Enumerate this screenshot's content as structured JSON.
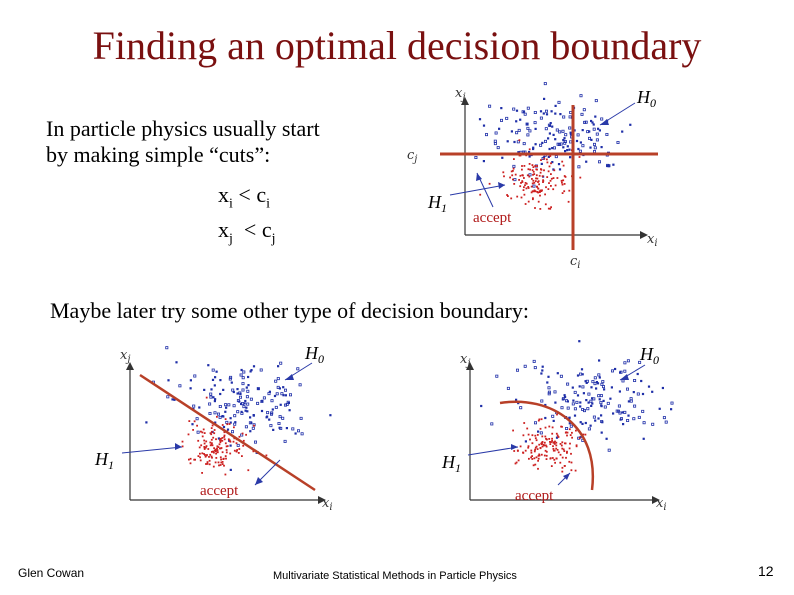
{
  "title": "Finding an optimal decision boundary",
  "intro": {
    "line1": "In particle physics usually start",
    "line2": "by making simple “cuts”:"
  },
  "cuts": [
    {
      "var": "x",
      "sub": "i",
      "op": " < ",
      "cut": "c",
      "csub": "i"
    },
    {
      "var": "x",
      "sub": "j",
      "op": "  < ",
      "cut": "c",
      "csub": "j"
    }
  ],
  "later_text": "Maybe later try some other type of decision boundary:",
  "labels": {
    "xi": "x",
    "xi_sub": "i",
    "xj": "x",
    "xj_sub": "j",
    "ci": "c",
    "ci_sub": "i",
    "cj": "c",
    "cj_sub": "j",
    "h0": "H",
    "h0_sub": "0",
    "h1": "H",
    "h1_sub": "1",
    "accept": "accept"
  },
  "colors": {
    "signal": "#cc2020",
    "background": "#1f2fa8",
    "boundary": "#b84028",
    "title": "#7a1010"
  },
  "footer": {
    "author": "Glen Cowan",
    "course": "Multivariate Statistical Methods in Particle Physics",
    "page": "12"
  }
}
